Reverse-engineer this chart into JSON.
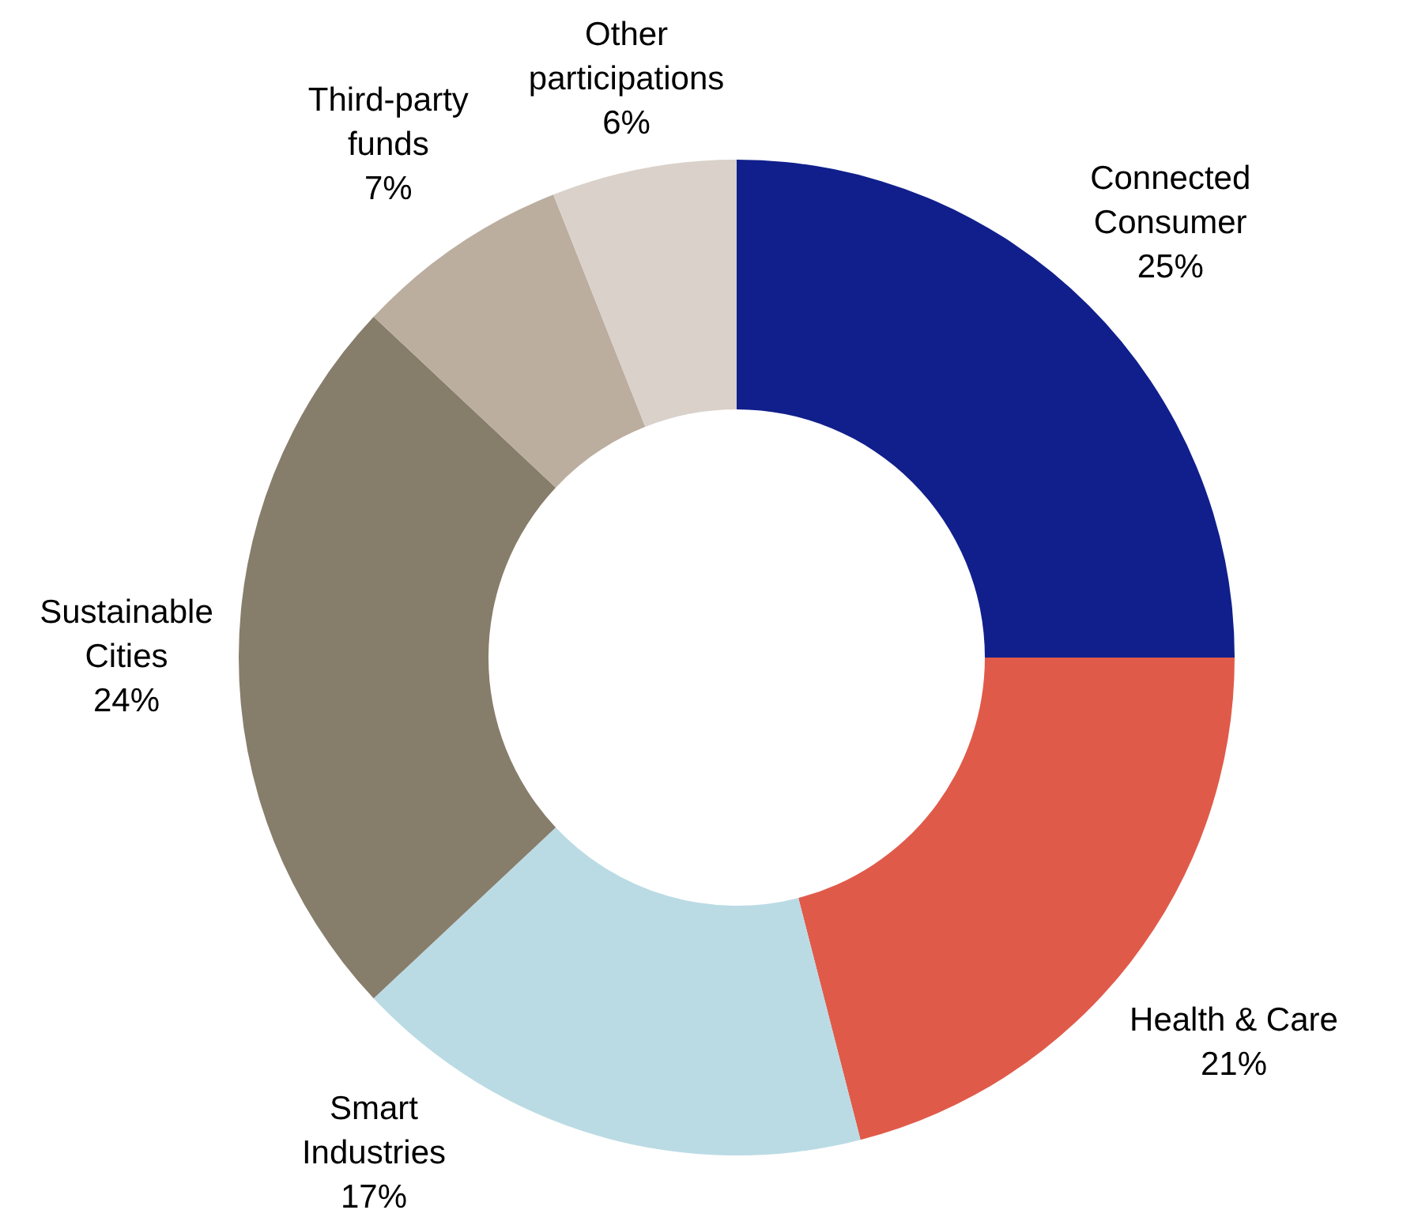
{
  "chart_data": {
    "type": "donut",
    "categories": [
      "Connected Consumer",
      "Health & Care",
      "Smart Industries",
      "Sustainable Cities",
      "Third-party funds",
      "Other participations"
    ],
    "values": [
      25,
      21,
      17,
      24,
      7,
      6
    ],
    "colors": [
      "#111f8c",
      "#e05a4a",
      "#badbe4",
      "#877d6b",
      "#bbae9f",
      "#d9d1ca"
    ],
    "value_labels": [
      "25%",
      "21%",
      "17%",
      "24%",
      "7%",
      "6%"
    ]
  }
}
